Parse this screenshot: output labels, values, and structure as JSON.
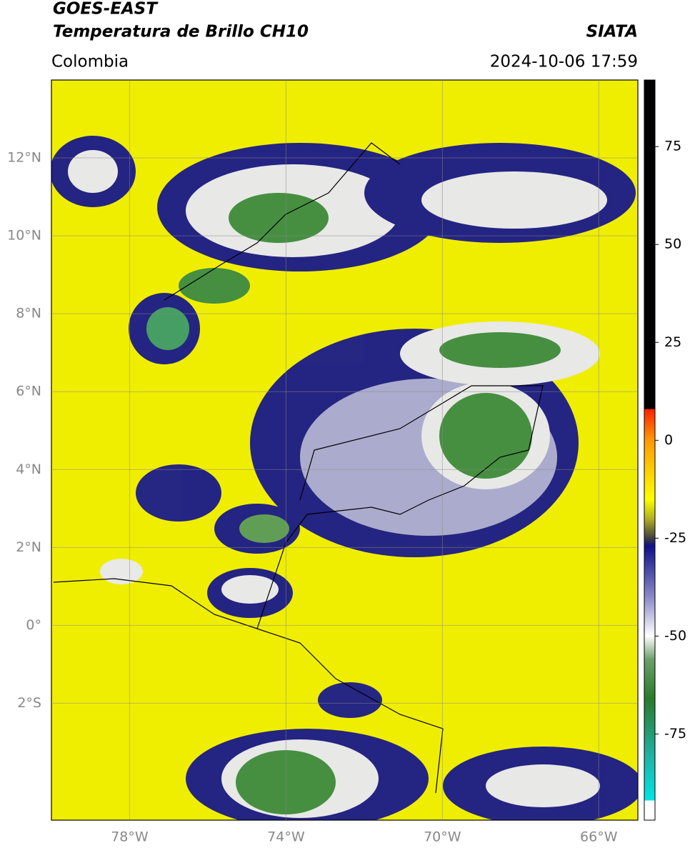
{
  "header": {
    "title": "GOES-EAST",
    "subtitle": "Temperatura de Brillo CH10",
    "source": "SIATA",
    "region": "Colombia",
    "timestamp": "2024-10-06 17:59"
  },
  "map": {
    "lonlim": [
      -80,
      -65
    ],
    "latlim": [
      -5,
      14
    ],
    "lat_ticks": [
      {
        "value": 12,
        "label": "12°N"
      },
      {
        "value": 10,
        "label": "10°N"
      },
      {
        "value": 8,
        "label": "8°N"
      },
      {
        "value": 6,
        "label": "6°N"
      },
      {
        "value": 4,
        "label": "4°N"
      },
      {
        "value": 2,
        "label": "2°N"
      },
      {
        "value": 0,
        "label": "0°"
      },
      {
        "value": -2,
        "label": "2°S"
      }
    ],
    "lon_ticks": [
      {
        "value": -78,
        "label": "78°W"
      },
      {
        "value": -74,
        "label": "74°W"
      },
      {
        "value": -70,
        "label": "70°W"
      },
      {
        "value": -66,
        "label": "66°W"
      }
    ],
    "grid": true
  },
  "colorbar": {
    "range": [
      -97,
      92
    ],
    "ticks": [
      75,
      50,
      25,
      0,
      -25,
      -50,
      -75
    ],
    "color_stops": [
      {
        "value": 92,
        "color": "#000000"
      },
      {
        "value": 8,
        "color": "#000000"
      },
      {
        "value": 8,
        "color": "#ff2000"
      },
      {
        "value": 0,
        "color": "#ff9a00"
      },
      {
        "value": -15,
        "color": "#ffff00"
      },
      {
        "value": -20,
        "color": "#b0b020"
      },
      {
        "value": -25,
        "color": "#404040"
      },
      {
        "value": -27,
        "color": "#10108a"
      },
      {
        "value": -40,
        "color": "#8a8ac8"
      },
      {
        "value": -50,
        "color": "#ffffff"
      },
      {
        "value": -56,
        "color": "#6aa06a"
      },
      {
        "value": -66,
        "color": "#2a7a2a"
      },
      {
        "value": -80,
        "color": "#20b0a0"
      },
      {
        "value": -92,
        "color": "#00e6e6"
      },
      {
        "value": -92,
        "color": "#ffffff"
      },
      {
        "value": -97,
        "color": "#ffffff"
      }
    ]
  }
}
